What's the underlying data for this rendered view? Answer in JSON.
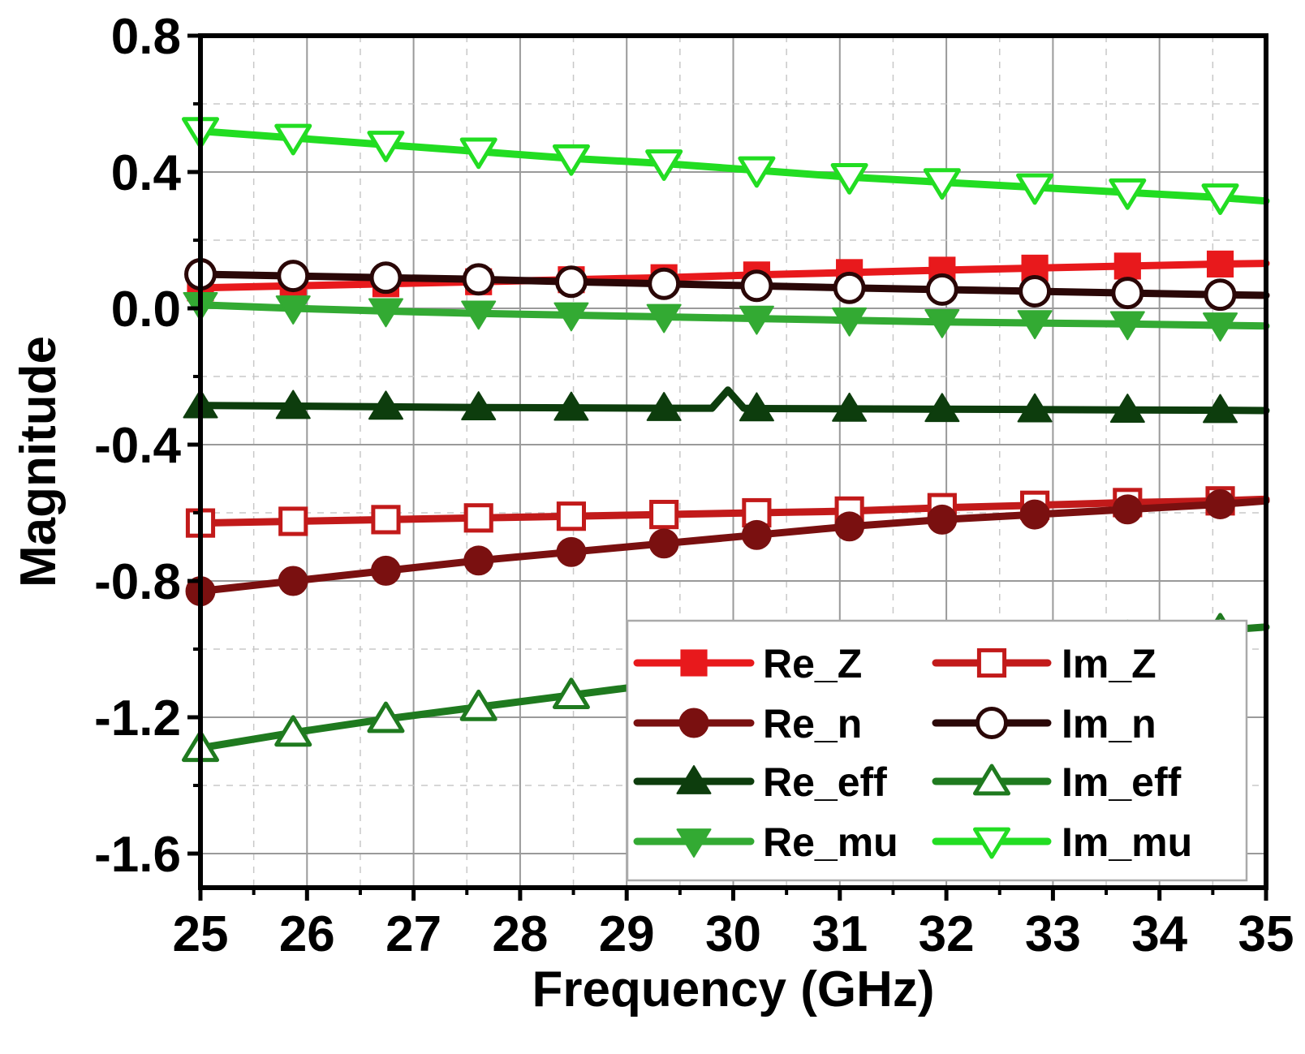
{
  "chart_data": {
    "type": "line",
    "title": "",
    "xlabel": "Frequency (GHz)",
    "ylabel": "Magnitude",
    "xlim": [
      25,
      35
    ],
    "ylim": [
      -1.7,
      0.8
    ],
    "x_ticks": [
      25,
      26,
      27,
      28,
      29,
      30,
      31,
      32,
      33,
      34,
      35
    ],
    "x_tick_labels": [
      "25",
      "26",
      "27",
      "28",
      "29",
      "30",
      "31",
      "32",
      "33",
      "34",
      "35"
    ],
    "y_ticks": [
      -1.6,
      -1.2,
      -0.8,
      -0.4,
      0.0,
      0.4,
      0.8
    ],
    "y_tick_labels": [
      "-1.6",
      "-1.2",
      "-0.8",
      "-0.4",
      "0.0",
      "0.4",
      "0.8"
    ],
    "grid": true,
    "legend_position": "bottom-right",
    "marker_x": [
      25.0,
      25.87,
      26.74,
      27.61,
      28.48,
      29.35,
      30.22,
      31.09,
      31.96,
      32.83,
      33.7,
      34.57
    ],
    "series": [
      {
        "name": "Re_Z",
        "color": "#e8191c",
        "marker": "square-filled",
        "x": [
          25.0,
          25.87,
          26.74,
          27.61,
          28.48,
          29.35,
          30.22,
          31.09,
          31.96,
          32.83,
          33.7,
          34.57,
          35.0
        ],
        "y": [
          0.06,
          0.066,
          0.072,
          0.078,
          0.084,
          0.09,
          0.098,
          0.105,
          0.112,
          0.118,
          0.124,
          0.13,
          0.132
        ]
      },
      {
        "name": "Im_Z",
        "color": "#c21a1a",
        "marker": "square-open",
        "x": [
          25.0,
          25.87,
          26.74,
          27.61,
          28.48,
          29.35,
          30.22,
          31.09,
          31.96,
          32.83,
          33.7,
          34.57,
          35.0
        ],
        "y": [
          -0.63,
          -0.625,
          -0.62,
          -0.615,
          -0.61,
          -0.605,
          -0.6,
          -0.595,
          -0.585,
          -0.578,
          -0.57,
          -0.565,
          -0.56
        ]
      },
      {
        "name": "Re_n",
        "color": "#7a1010",
        "marker": "circle-filled",
        "x": [
          25.0,
          25.87,
          26.74,
          27.61,
          28.48,
          29.35,
          30.22,
          31.09,
          31.96,
          32.83,
          33.7,
          34.57,
          35.0
        ],
        "y": [
          -0.83,
          -0.8,
          -0.77,
          -0.74,
          -0.715,
          -0.69,
          -0.665,
          -0.64,
          -0.62,
          -0.605,
          -0.59,
          -0.575,
          -0.565
        ]
      },
      {
        "name": "Im_n",
        "color": "#2a0707",
        "marker": "circle-open",
        "x": [
          25.0,
          25.87,
          26.74,
          27.61,
          28.48,
          29.35,
          30.22,
          31.09,
          31.96,
          32.83,
          33.7,
          34.57,
          35.0
        ],
        "y": [
          0.1,
          0.095,
          0.09,
          0.085,
          0.078,
          0.072,
          0.066,
          0.06,
          0.055,
          0.05,
          0.045,
          0.04,
          0.038
        ]
      },
      {
        "name": "Re_eff",
        "color": "#0d3d0d",
        "marker": "triangle-up-filled",
        "x": [
          25.0,
          25.87,
          26.74,
          27.61,
          28.48,
          29.35,
          29.8,
          29.95,
          30.1,
          30.22,
          31.09,
          31.96,
          32.83,
          33.7,
          34.57,
          35.0
        ],
        "y": [
          -0.285,
          -0.287,
          -0.289,
          -0.291,
          -0.292,
          -0.293,
          -0.293,
          -0.24,
          -0.293,
          -0.294,
          -0.295,
          -0.296,
          -0.297,
          -0.298,
          -0.299,
          -0.3
        ]
      },
      {
        "name": "Im_eff",
        "color": "#1f7a1f",
        "marker": "triangle-up-open",
        "x": [
          25.0,
          25.87,
          26.74,
          27.61,
          28.48,
          29.35,
          30.22,
          31.09,
          31.96,
          32.83,
          33.7,
          34.57,
          35.0
        ],
        "y": [
          -1.29,
          -1.245,
          -1.205,
          -1.17,
          -1.135,
          -1.1,
          -1.07,
          -1.04,
          -1.01,
          -0.985,
          -0.965,
          -0.945,
          -0.935
        ]
      },
      {
        "name": "Re_mu",
        "color": "#33aa33",
        "marker": "triangle-down-filled",
        "x": [
          25.0,
          25.87,
          26.74,
          27.61,
          28.48,
          29.35,
          30.22,
          31.09,
          31.96,
          32.83,
          33.7,
          34.57,
          35.0
        ],
        "y": [
          0.01,
          0.0,
          -0.008,
          -0.015,
          -0.02,
          -0.025,
          -0.03,
          -0.035,
          -0.04,
          -0.043,
          -0.046,
          -0.05,
          -0.052
        ]
      },
      {
        "name": "Im_mu",
        "color": "#22dd22",
        "marker": "triangle-down-open",
        "x": [
          25.0,
          25.87,
          26.74,
          27.61,
          28.48,
          29.35,
          30.22,
          31.09,
          31.96,
          32.83,
          33.7,
          34.57,
          35.0
        ],
        "y": [
          0.52,
          0.5,
          0.48,
          0.46,
          0.44,
          0.425,
          0.405,
          0.385,
          0.37,
          0.355,
          0.34,
          0.325,
          0.315
        ]
      }
    ]
  }
}
